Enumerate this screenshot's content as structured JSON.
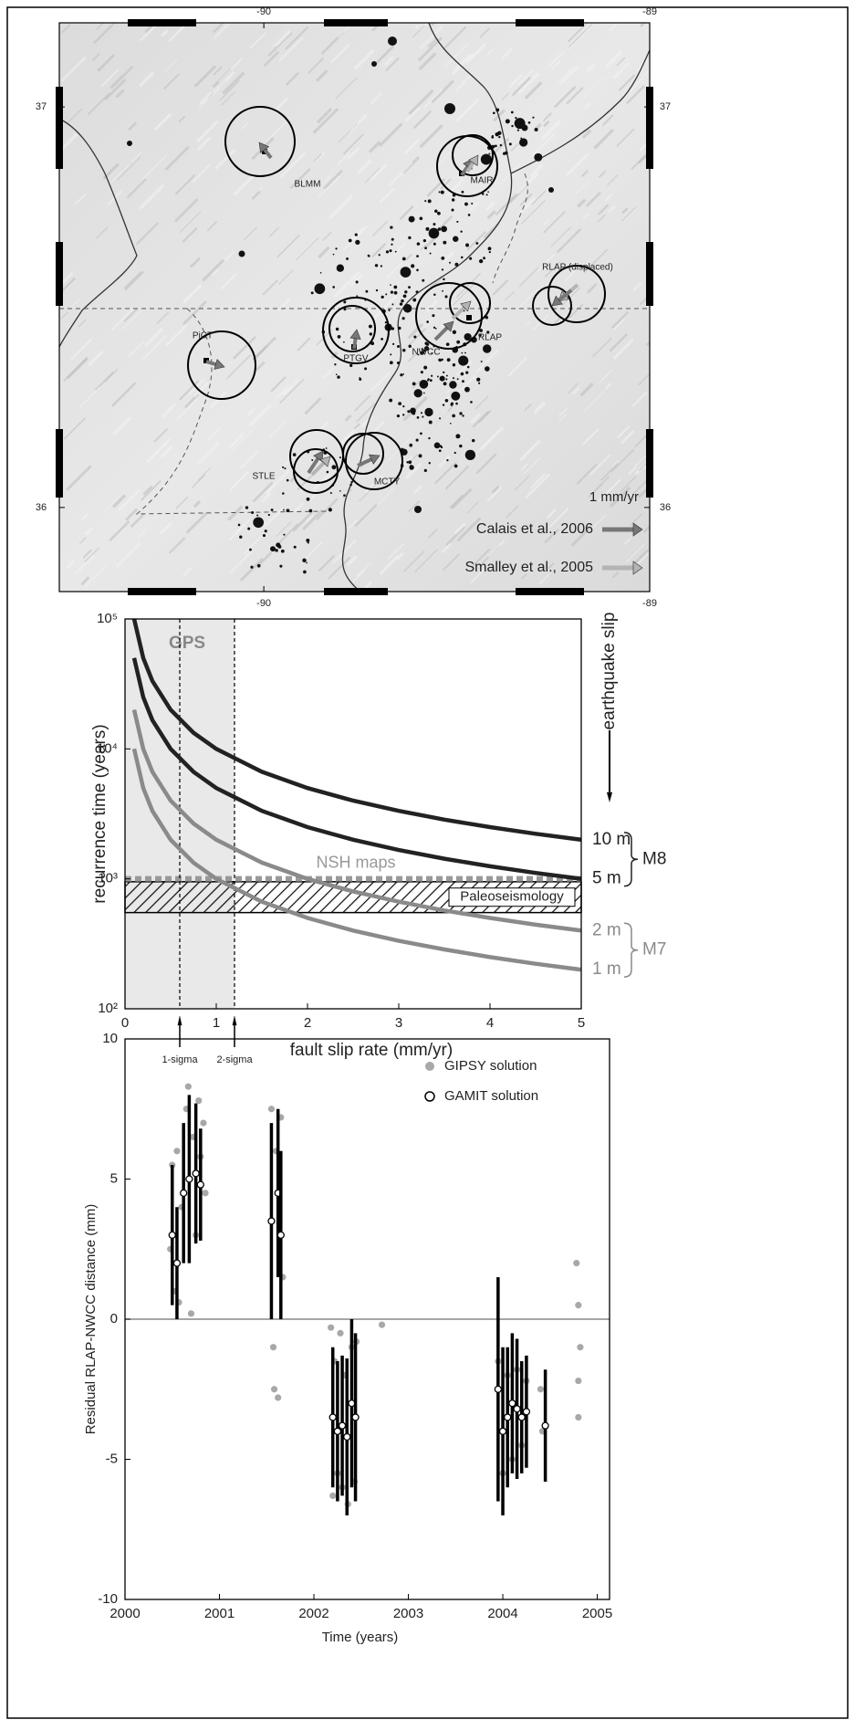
{
  "map": {
    "xlim": [
      -90.53,
      -89.0
    ],
    "ylim": [
      35.79,
      37.21
    ],
    "xticks": [
      -90,
      -89
    ],
    "yticks": [
      36,
      37
    ],
    "stations": [
      "BLMM",
      "MAIR",
      "RLAP (displaced)",
      "PTGV",
      "RLAP",
      "NWCC",
      "PiCT",
      "STLE",
      "MCTY"
    ],
    "scale_label": "1 mm/yr",
    "legend": [
      {
        "name": "Calais et al., 2006",
        "color": "#777777"
      },
      {
        "name": "Smalley et al., 2005",
        "color": "#b4b4b4"
      }
    ]
  },
  "chart_data": [
    {
      "type": "line",
      "x": [
        0.1,
        0.2,
        0.3,
        0.5,
        0.75,
        1,
        1.5,
        2,
        2.5,
        3,
        3.5,
        4,
        4.5,
        5
      ],
      "series": [
        {
          "name": "10 m",
          "color": "#222222",
          "values": [
            100000,
            50000,
            33333,
            20000,
            13333,
            10000,
            6667,
            5000,
            4000,
            3333,
            2857,
            2500,
            2222,
            2000
          ]
        },
        {
          "name": "5 m",
          "color": "#222222",
          "values": [
            50000,
            25000,
            16667,
            10000,
            6667,
            5000,
            3333,
            2500,
            2000,
            1667,
            1429,
            1250,
            1111,
            1000
          ]
        },
        {
          "name": "2 m",
          "color": "#8a8a8a",
          "values": [
            20000,
            10000,
            6667,
            4000,
            2667,
            2000,
            1333,
            1000,
            800,
            667,
            571,
            500,
            444,
            400
          ]
        },
        {
          "name": "1 m",
          "color": "#8a8a8a",
          "values": [
            10000,
            5000,
            3333,
            2000,
            1333,
            1000,
            667,
            500,
            400,
            333,
            286,
            250,
            222,
            200
          ]
        }
      ],
      "xlim": [
        0,
        5
      ],
      "ylim": [
        100,
        100000
      ],
      "yscale": "log",
      "xticks": [
        0,
        1,
        2,
        3,
        4,
        5
      ],
      "yticks": [
        {
          "value": 100,
          "label": "10²"
        },
        {
          "value": 1000,
          "label": "10³"
        },
        {
          "value": 10000,
          "label": "10⁴"
        },
        {
          "value": 100000,
          "label": "10⁵"
        }
      ],
      "xlabel": "fault slip rate (mm/yr)",
      "ylabel": "recurrence time (years)",
      "right_label": "earthquake slip",
      "magnitude_labels": [
        "M8",
        "M7"
      ],
      "gps_region": {
        "label": "GPS",
        "range": [
          0,
          1.2
        ]
      },
      "sigma_lines": [
        {
          "label": "1-sigma",
          "x": 0.6
        },
        {
          "label": "2-sigma",
          "x": 1.2
        }
      ],
      "nsh": {
        "label": "NSH maps",
        "value": 1000,
        "color": "#999999"
      },
      "paleoseismology": {
        "label": "Paleoseismology",
        "range": [
          550,
          950
        ]
      }
    },
    {
      "type": "scatter",
      "xlabel": "Time (years)",
      "ylabel": "Residual RLAP-NWCC  distance (mm)",
      "xlim": [
        2000,
        2005.13
      ],
      "ylim": [
        -10,
        10
      ],
      "xticks": [
        2000,
        2001,
        2002,
        2003,
        2004,
        2005
      ],
      "yticks": [
        10,
        5,
        0,
        -5,
        -10
      ],
      "series": [
        {
          "name": "GIPSY solution",
          "color": "#a8a8a8",
          "x": [
            2000.48,
            2000.5,
            2000.52,
            2000.55,
            2000.57,
            2000.6,
            2000.65,
            2000.67,
            2000.7,
            2000.72,
            2000.75,
            2000.78,
            2000.8,
            2000.83,
            2000.85,
            2001.55,
            2001.57,
            2001.58,
            2001.6,
            2001.62,
            2001.65,
            2001.67,
            2002.18,
            2002.2,
            2002.22,
            2002.25,
            2002.28,
            2002.3,
            2002.33,
            2002.36,
            2002.4,
            2002.43,
            2002.45,
            2002.72,
            2003.95,
            2004.0,
            2004.05,
            2004.1,
            2004.15,
            2004.2,
            2004.25,
            2004.4,
            2004.42,
            2004.78,
            2004.8,
            2004.82,
            2004.8,
            2004.8
          ],
          "values": [
            2.5,
            5.5,
            1.0,
            6,
            0.6,
            4,
            7.5,
            8.3,
            0.2,
            6.5,
            3,
            7.8,
            5.8,
            7,
            4.5,
            7.5,
            -1,
            -2.5,
            6,
            -2.8,
            7.2,
            1.5,
            -0.3,
            -6.3,
            -1.5,
            -5.5,
            -0.5,
            -6,
            -2,
            -6.6,
            -1,
            -5.8,
            -0.8,
            -0.2,
            -1.5,
            -5.5,
            -2,
            -5,
            -1.8,
            -4.5,
            -2.2,
            -2.5,
            -4,
            2,
            0.5,
            -1,
            -2.2,
            -3.5
          ]
        },
        {
          "name": "GAMIT solution",
          "color": "#000000",
          "x": [
            2000.5,
            2000.55,
            2000.62,
            2000.68,
            2000.75,
            2000.8,
            2001.55,
            2001.62,
            2001.65,
            2002.2,
            2002.25,
            2002.3,
            2002.35,
            2002.4,
            2002.44,
            2003.95,
            2004.0,
            2004.05,
            2004.1,
            2004.15,
            2004.2,
            2004.25,
            2004.45
          ],
          "values": [
            3,
            2,
            4.5,
            5,
            5.2,
            4.8,
            3.5,
            4.5,
            3,
            -3.5,
            -4,
            -3.8,
            -4.2,
            -3,
            -3.5,
            -2.5,
            -4,
            -3.5,
            -3,
            -3.2,
            -3.5,
            -3.3,
            -3.8
          ],
          "errors": [
            2.5,
            2,
            2.5,
            3,
            2.5,
            2,
            3.5,
            3,
            3,
            2.5,
            2.5,
            2.5,
            2.8,
            3,
            3,
            4,
            3,
            2.5,
            2.5,
            2.5,
            2,
            2,
            2
          ]
        }
      ],
      "zero_line": true
    }
  ]
}
